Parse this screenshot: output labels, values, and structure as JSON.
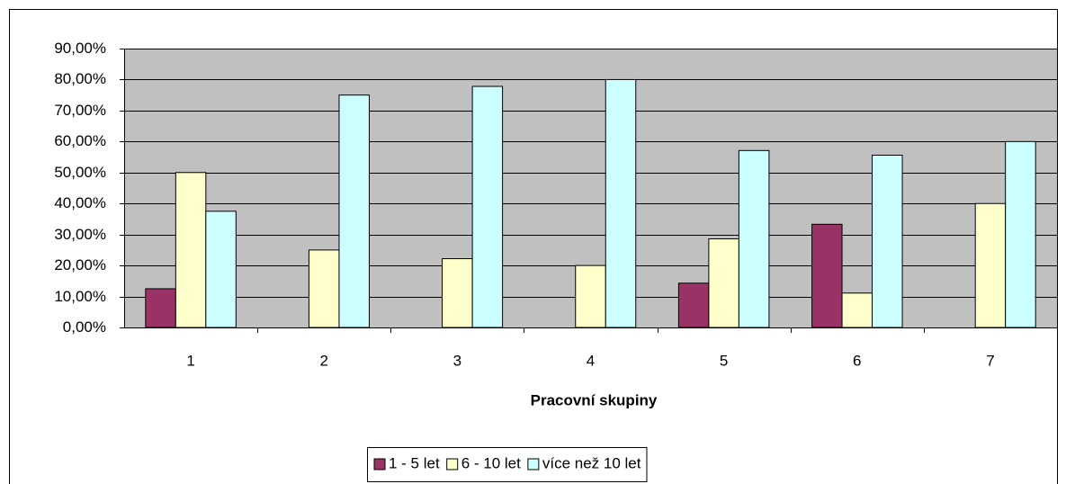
{
  "chart_data": {
    "type": "bar",
    "x_label": "Pracovní skupiny",
    "categories": [
      "1",
      "2",
      "3",
      "4",
      "5",
      "6",
      "7"
    ],
    "series": [
      {
        "name": "1 - 5 let",
        "color": "#993366",
        "values": [
          12.5,
          0,
          0,
          0,
          14.3,
          33.3,
          0
        ]
      },
      {
        "name": "6 - 10 let",
        "color": "#ffffcc",
        "values": [
          50,
          25,
          22.2,
          20,
          28.6,
          11.1,
          40
        ]
      },
      {
        "name": "více než 10 let",
        "color": "#ccffff",
        "values": [
          37.5,
          75,
          77.8,
          80,
          57.1,
          55.6,
          60
        ]
      }
    ],
    "ylim": [
      0,
      90
    ],
    "yticks": [
      {
        "value": 0,
        "label": "0,00%"
      },
      {
        "value": 10,
        "label": "10,00%"
      },
      {
        "value": 20,
        "label": "20,00%"
      },
      {
        "value": 30,
        "label": "30,00%"
      },
      {
        "value": 40,
        "label": "40,00%"
      },
      {
        "value": 50,
        "label": "50,00%"
      },
      {
        "value": 60,
        "label": "60,00%"
      },
      {
        "value": 70,
        "label": "70,00%"
      },
      {
        "value": 80,
        "label": "80,00%"
      },
      {
        "value": 90,
        "label": "90,00%"
      }
    ],
    "grid": true,
    "plot_background": "#c0c0c0",
    "legend": "bottom"
  }
}
